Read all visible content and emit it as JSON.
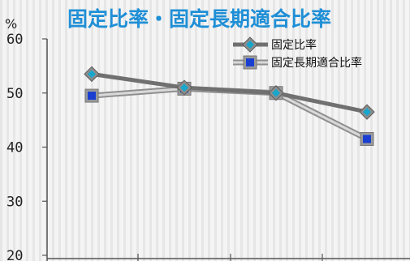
{
  "chart_data": {
    "type": "line",
    "title": "固定比率・固定長期適合比率",
    "unit_label": "%",
    "ylim": [
      20,
      60
    ],
    "yticks": [
      20,
      30,
      40,
      50,
      60
    ],
    "grid": false,
    "legend_position": "top-right",
    "categories": [
      "",
      "",
      "",
      ""
    ],
    "series": [
      {
        "name": "固定比率",
        "values": [
          53.5,
          51.0,
          50.0,
          46.5
        ],
        "line_color": "#707070",
        "marker": "diamond",
        "marker_fill": "#19a6cc"
      },
      {
        "name": "固定長期適合比率",
        "values": [
          49.5,
          50.8,
          50.0,
          41.5
        ],
        "line_color": "#bdbdbd",
        "marker": "square",
        "marker_fill": "#1a3fd0"
      }
    ]
  }
}
